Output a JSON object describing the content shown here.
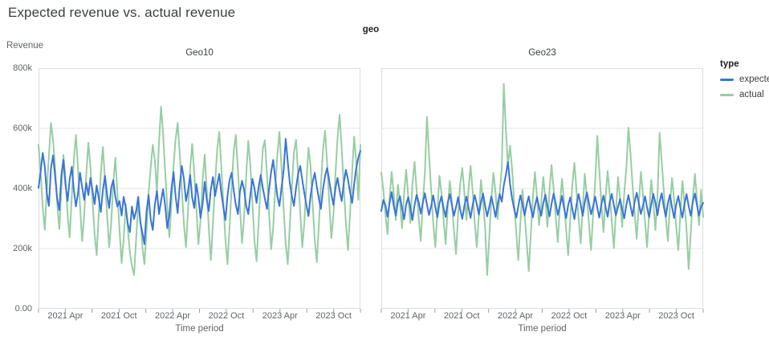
{
  "page_title": "Expected revenue vs. actual revenue",
  "facet_field_label": "geo",
  "y_axis_title": "Revenue",
  "x_axis_title": "Time period",
  "legend": {
    "title": "type",
    "items": [
      {
        "label": "expected",
        "color": "#3b74d8"
      },
      {
        "label": "actual",
        "color": "#97cea2"
      }
    ]
  },
  "chart_data": {
    "type": "line",
    "title": "Expected revenue vs. actual revenue",
    "facet_by": "geo",
    "xlabel": "Time period",
    "ylabel": "Revenue",
    "ylim_k": [
      0,
      800
    ],
    "values_unit": "thousands (k)",
    "x_frequency": "weekly, Jan 2021 - Dec 2023",
    "grid": true,
    "legend_position": "right",
    "y_tick_labels": [
      "800k",
      "600k",
      "400k",
      "200k",
      "0.00"
    ],
    "y_grid_values_k": [
      200,
      400,
      600
    ],
    "x_tick_labels": [
      "2021 Apr",
      "2021 Oct",
      "2022 Apr",
      "2022 Oct",
      "2023 Apr",
      "2023 Oct"
    ],
    "x_tick_month_positions": [
      3,
      9,
      15,
      21,
      27,
      33
    ],
    "x_minor_tick_step_months": 3,
    "x_axis_total_months": 36,
    "facets": [
      {
        "title": "Geo10",
        "series": [
          {
            "name": "expected",
            "color": "#3b74d8",
            "values_k": [
              402,
              455,
              518,
              472,
              385,
              342,
              468,
              510,
              438,
              365,
              328,
              446,
              495,
              412,
              358,
              430,
              472,
              395,
              340,
              385,
              452,
              405,
              362,
              418,
              378,
              435,
              392,
              348,
              410,
              368,
              322,
              395,
              442,
              380,
              335,
              402,
              428,
              372,
              340,
              358,
              310,
              372,
              335,
              282,
              255,
              340,
              298,
              325,
              372,
              288,
              252,
              215,
              322,
              378,
              298,
              262,
              345,
              392,
              315,
              358,
              398,
              342,
              268,
              312,
              398,
              455,
              375,
              318,
              412,
              475,
              432,
              358,
              392,
              445,
              370,
              335,
              415,
              368,
              302,
              348,
              422,
              362,
              325,
              398,
              438,
              375,
              412,
              448,
              385,
              338,
              295,
              375,
              428,
              452,
              392,
              345,
              315,
              388,
              425,
              395,
              342,
              315,
              380,
              432,
              398,
              352,
              405,
              445,
              402,
              365,
              332,
              398,
              455,
              495,
              432,
              375,
              342,
              402,
              458,
              565,
              488,
              418,
              375,
              342,
              402,
              448,
              475,
              428,
              385,
              345,
              308,
              375,
              422,
              452,
              405,
              365,
              332,
              398,
              442,
              468,
              425,
              382,
              345,
              402,
              435,
              392,
              358,
              418,
              462,
              430,
              388,
              352,
              415,
              468,
              502,
              525
            ]
          },
          {
            "name": "actual",
            "color": "#97cea2",
            "values_k": [
              545,
              455,
              340,
              262,
              395,
              508,
              618,
              560,
              472,
              348,
              265,
              398,
              512,
              432,
              315,
              238,
              372,
              495,
              578,
              465,
              342,
              225,
              308,
              448,
              552,
              470,
              358,
              248,
              178,
              315,
              452,
              538,
              428,
              312,
              205,
              282,
              415,
              502,
              385,
              262,
              152,
              235,
              348,
              268,
              188,
              142,
              112,
              232,
              345,
              298,
              205,
              148,
              258,
              385,
              468,
              545,
              495,
              388,
              555,
              672,
              582,
              455,
              338,
              238,
              348,
              475,
              562,
              618,
              515,
              398,
              282,
              205,
              328,
              465,
              548,
              452,
              335,
              215,
              295,
              428,
              512,
              395,
              268,
              162,
              285,
              412,
              528,
              588,
              472,
              352,
              232,
              148,
              272,
              405,
              525,
              578,
              462,
              338,
              218,
              305,
              445,
              558,
              475,
              348,
              225,
              158,
              288,
              418,
              532,
              560,
              445,
              318,
              198,
              268,
              402,
              512,
              588,
              468,
              335,
              215,
              148,
              275,
              405,
              522,
              562,
              445,
              322,
              205,
              285,
              418,
              535,
              475,
              348,
              228,
              155,
              282,
              412,
              528,
              592,
              478,
              352,
              235,
              312,
              452,
              568,
              645,
              532,
              405,
              285,
              195,
              318,
              455,
              572,
              488,
              362,
              545
            ]
          }
        ]
      },
      {
        "title": "Geo23",
        "series": [
          {
            "name": "expected",
            "color": "#3b74d8",
            "values_k": [
              325,
              362,
              344,
              306,
              351,
              388,
              342,
              310,
              356,
              374,
              333,
              298,
              347,
              371,
              336,
              295,
              344,
              379,
              355,
              316,
              352,
              384,
              346,
              312,
              341,
              377,
              338,
              304,
              349,
              374,
              335,
              305,
              353,
              381,
              344,
              309,
              338,
              371,
              330,
              299,
              342,
              373,
              336,
              302,
              345,
              378,
              347,
              313,
              354,
              383,
              342,
              307,
              339,
              374,
              341,
              305,
              347,
              381,
              356,
              410,
              445,
              488,
              415,
              366,
              331,
              303,
              341,
              377,
              348,
              310,
              346,
              374,
              335,
              304,
              342,
              371,
              337,
              309,
              351,
              379,
              340,
              307,
              349,
              383,
              351,
              312,
              342,
              375,
              334,
              301,
              344,
              370,
              332,
              298,
              346,
              381,
              347,
              309,
              354,
              387,
              352,
              314,
              341,
              373,
              336,
              303,
              347,
              376,
              339,
              306,
              355,
              382,
              343,
              311,
              339,
              365,
              329,
              301,
              345,
              378,
              341,
              308,
              355,
              386,
              351,
              315,
              343,
              374,
              336,
              304,
              347,
              382,
              352,
              311,
              356,
              384,
              341,
              306,
              351,
              379,
              338,
              302,
              346,
              375,
              337,
              303,
              349,
              381,
              342,
              309,
              356,
              383,
              345,
              310,
              339,
              352
            ]
          },
          {
            "name": "actual",
            "color": "#97cea2",
            "values_k": [
              452,
              395,
              312,
              248,
              368,
              455,
              382,
              295,
              412,
              352,
              268,
              385,
              462,
              372,
              285,
              415,
              488,
              395,
              302,
              225,
              348,
              452,
              638,
              512,
              395,
              285,
              205,
              325,
              442,
              385,
              295,
              215,
              338,
              425,
              352,
              262,
              182,
              312,
              415,
              468,
              385,
              295,
              398,
              475,
              392,
              288,
              205,
              312,
              428,
              355,
              265,
              112,
              238,
              365,
              452,
              388,
              298,
              385,
              468,
              748,
              598,
              475,
              542,
              465,
              348,
              252,
              162,
              288,
              395,
              312,
              225,
              125,
              248,
              372,
              455,
              368,
              278,
              352,
              438,
              365,
              272,
              395,
              478,
              398,
              305,
              222,
              345,
              432,
              358,
              262,
              178,
              298,
              412,
              485,
              392,
              302,
              218,
              332,
              448,
              372,
              282,
              195,
              315,
              425,
              575,
              462,
              348,
              255,
              372,
              458,
              378,
              288,
              202,
              325,
              438,
              365,
              272,
              385,
              468,
              602,
              515,
              412,
              318,
              232,
              348,
              455,
              378,
              288,
              205,
              318,
              428,
              352,
              262,
              375,
              585,
              492,
              398,
              305,
              225,
              342,
              435,
              362,
              272,
              195,
              312,
              425,
              352,
              262,
              132,
              252,
              368,
              448,
              365,
              278,
              395,
              305
            ]
          }
        ]
      }
    ],
    "style": {
      "grid_color": "#e4e4e4",
      "border_color": "#dcdcdc",
      "tick_color": "#9aa0a6"
    }
  }
}
